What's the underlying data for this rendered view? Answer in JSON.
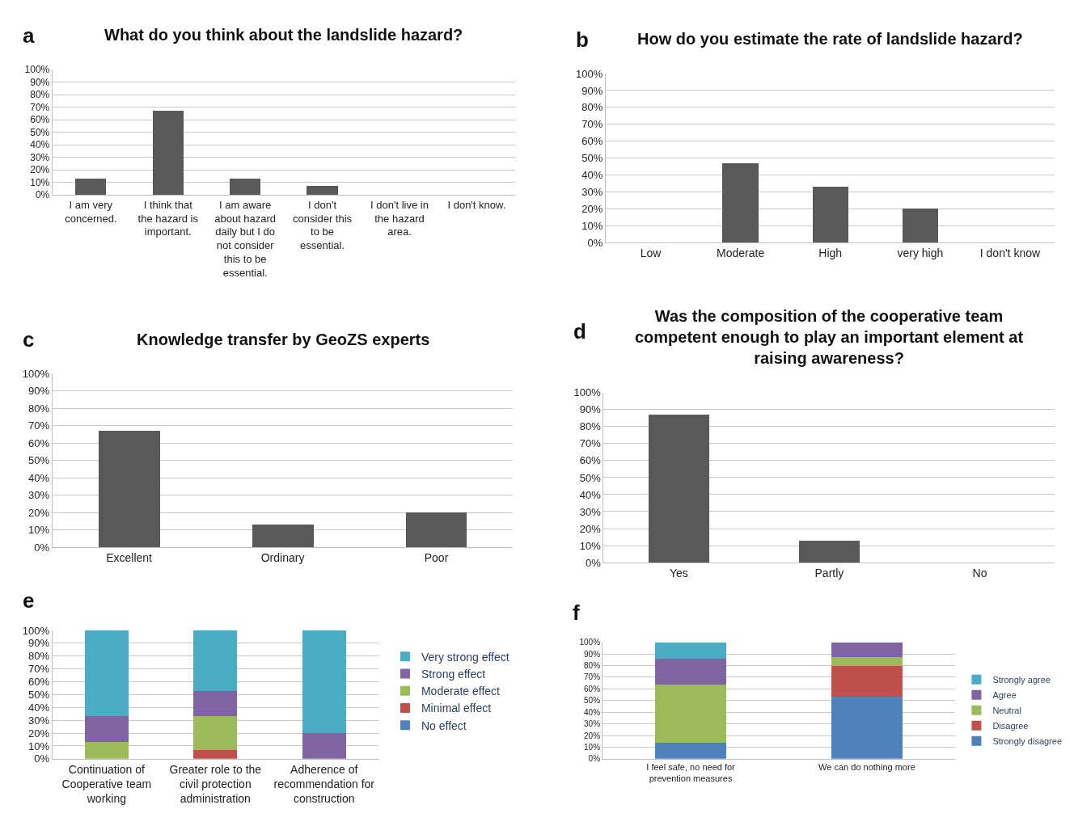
{
  "chart_data": [
    {
      "type": "bar",
      "title": "What do you think about the landslide hazard?",
      "annotations": [
        "a"
      ],
      "categories": [
        "I am very concerned.",
        "I think that the hazard is important.",
        "I am aware about hazard daily but I do not consider this to be essential.",
        "I don't consider this to be essential.",
        "I don't live in the hazard area.",
        "I don't know."
      ],
      "values": [
        13,
        67,
        13,
        7,
        0,
        0
      ],
      "color": "#595959",
      "ylim": [
        0,
        100
      ],
      "yticks": [
        {
          "value": 0,
          "label": "0%"
        },
        {
          "value": 10,
          "label": "10%"
        },
        {
          "value": 20,
          "label": "20%"
        },
        {
          "value": 30,
          "label": "30%"
        },
        {
          "value": 40,
          "label": "40%"
        },
        {
          "value": 50,
          "label": "50%"
        },
        {
          "value": 60,
          "label": "60%"
        },
        {
          "value": 70,
          "label": "70%"
        },
        {
          "value": 80,
          "label": "80%"
        },
        {
          "value": 90,
          "label": "90%"
        },
        {
          "value": 100,
          "label": "100%"
        }
      ],
      "grid": "y",
      "legend": false
    },
    {
      "type": "bar",
      "title": "How do you estimate the rate of landslide hazard?",
      "annotations": [
        "b"
      ],
      "categories": [
        "Low",
        "Moderate",
        "High",
        "very high",
        "I don't know"
      ],
      "values": [
        0,
        47,
        33,
        20,
        0
      ],
      "color": "#595959",
      "ylim": [
        0,
        100
      ],
      "yticks": [
        {
          "value": 0,
          "label": "0%"
        },
        {
          "value": 10,
          "label": "10%"
        },
        {
          "value": 20,
          "label": "20%"
        },
        {
          "value": 30,
          "label": "30%"
        },
        {
          "value": 40,
          "label": "40%"
        },
        {
          "value": 50,
          "label": "50%"
        },
        {
          "value": 60,
          "label": "60%"
        },
        {
          "value": 70,
          "label": "70%"
        },
        {
          "value": 80,
          "label": "80%"
        },
        {
          "value": 90,
          "label": "90%"
        },
        {
          "value": 100,
          "label": "100%"
        }
      ],
      "grid": "y",
      "legend": false
    },
    {
      "type": "bar",
      "title": "Knowledge transfer by GeoZS experts",
      "annotations": [
        "c"
      ],
      "categories": [
        "Excellent",
        "Ordinary",
        "Poor"
      ],
      "values": [
        67,
        13,
        20
      ],
      "color": "#595959",
      "ylim": [
        0,
        100
      ],
      "yticks": [
        {
          "value": 0,
          "label": "0%"
        },
        {
          "value": 10,
          "label": "10%"
        },
        {
          "value": 20,
          "label": "20%"
        },
        {
          "value": 30,
          "label": "30%"
        },
        {
          "value": 40,
          "label": "40%"
        },
        {
          "value": 50,
          "label": "50%"
        },
        {
          "value": 60,
          "label": "60%"
        },
        {
          "value": 70,
          "label": "70%"
        },
        {
          "value": 80,
          "label": "80%"
        },
        {
          "value": 90,
          "label": "90%"
        },
        {
          "value": 100,
          "label": "100%"
        }
      ],
      "grid": "y",
      "legend": false
    },
    {
      "type": "bar",
      "title": "Was the composition of the cooperative team competent enough to play an important element at raising awareness?",
      "annotations": [
        "d"
      ],
      "categories": [
        "Yes",
        "Partly",
        "No"
      ],
      "values": [
        87,
        13,
        0
      ],
      "color": "#595959",
      "ylim": [
        0,
        100
      ],
      "yticks": [
        {
          "value": 0,
          "label": "0%"
        },
        {
          "value": 10,
          "label": "10%"
        },
        {
          "value": 20,
          "label": "20%"
        },
        {
          "value": 30,
          "label": "30%"
        },
        {
          "value": 40,
          "label": "40%"
        },
        {
          "value": 50,
          "label": "50%"
        },
        {
          "value": 60,
          "label": "60%"
        },
        {
          "value": 70,
          "label": "70%"
        },
        {
          "value": 80,
          "label": "80%"
        },
        {
          "value": 90,
          "label": "90%"
        },
        {
          "value": 100,
          "label": "100%"
        }
      ],
      "grid": "y",
      "legend": false
    },
    {
      "type": "bar",
      "stacked": true,
      "annotations": [
        "e"
      ],
      "categories": [
        "Continuation of Cooperative team working",
        "Greater role to the civil protection administration",
        "Adherence of recommendation for construction"
      ],
      "series": [
        {
          "name": "No effect",
          "color": "#4f81bd",
          "values": [
            0,
            0,
            0
          ]
        },
        {
          "name": "Minimal effect",
          "color": "#c0504d",
          "values": [
            0,
            7,
            0
          ]
        },
        {
          "name": "Moderate effect",
          "color": "#9bbb59",
          "values": [
            13,
            26,
            0
          ]
        },
        {
          "name": "Strong effect",
          "color": "#8064a2",
          "values": [
            20,
            20,
            20
          ]
        },
        {
          "name": "Very strong effect",
          "color": "#4bacc6",
          "values": [
            67,
            47,
            80
          ]
        }
      ],
      "ylim": [
        0,
        100
      ],
      "yticks": [
        {
          "value": 0,
          "label": "0%"
        },
        {
          "value": 10,
          "label": "10%"
        },
        {
          "value": 20,
          "label": "20%"
        },
        {
          "value": 30,
          "label": "30%"
        },
        {
          "value": 40,
          "label": "40%"
        },
        {
          "value": 50,
          "label": "50%"
        },
        {
          "value": 60,
          "label": "60%"
        },
        {
          "value": 70,
          "label": "70%"
        },
        {
          "value": 80,
          "label": "80%"
        },
        {
          "value": 90,
          "label": "90%"
        },
        {
          "value": 100,
          "label": "100%"
        }
      ],
      "grid": "y",
      "legend": "right"
    },
    {
      "type": "bar",
      "stacked": true,
      "annotations": [
        "f"
      ],
      "categories": [
        "I feel safe, no need for prevention measures",
        "We can do nothing more"
      ],
      "series": [
        {
          "name": "Strongly disagree",
          "color": "#4f81bd",
          "values": [
            14,
            53
          ]
        },
        {
          "name": "Disagree",
          "color": "#c0504d",
          "values": [
            0,
            27
          ]
        },
        {
          "name": "Neutral",
          "color": "#9bbb59",
          "values": [
            50,
            7
          ]
        },
        {
          "name": "Agree",
          "color": "#8064a2",
          "values": [
            22,
            13
          ]
        },
        {
          "name": "Strongly agree",
          "color": "#4bacc6",
          "values": [
            14,
            0
          ]
        }
      ],
      "ylim": [
        0,
        100
      ],
      "yticks": [
        {
          "value": 0,
          "label": "0%"
        },
        {
          "value": 10,
          "label": "10%"
        },
        {
          "value": 20,
          "label": "20%"
        },
        {
          "value": 30,
          "label": "30%"
        },
        {
          "value": 40,
          "label": "40%"
        },
        {
          "value": 50,
          "label": "50%"
        },
        {
          "value": 60,
          "label": "60%"
        },
        {
          "value": 70,
          "label": "70%"
        },
        {
          "value": 80,
          "label": "80%"
        },
        {
          "value": 90,
          "label": "90%"
        },
        {
          "value": 100,
          "label": "100%"
        }
      ],
      "grid": "y",
      "legend": "right"
    }
  ]
}
